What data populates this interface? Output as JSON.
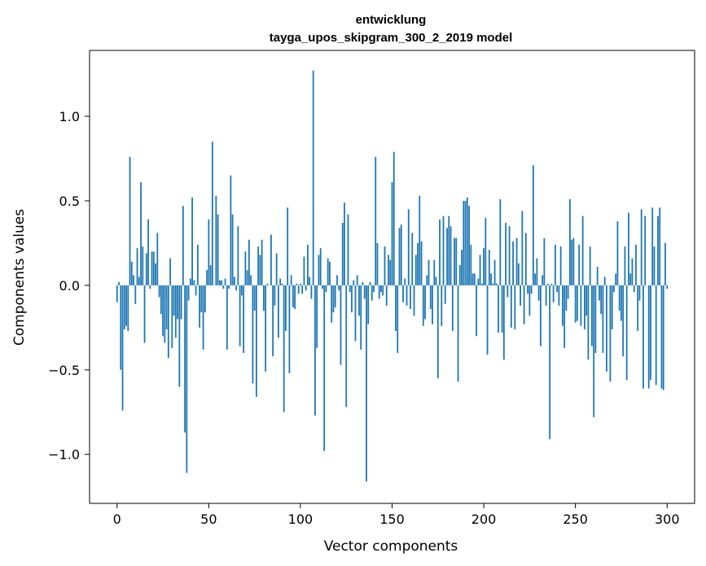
{
  "chart_data": {
    "type": "bar",
    "title": "entwicklung",
    "subtitle": "tayga_upos_skipgram_300_2_2019 model",
    "xlabel": "Vector components",
    "ylabel": "Components values",
    "xlim": [
      -15,
      315
    ],
    "ylim": [
      -1.29,
      1.39
    ],
    "xticks": [
      0,
      50,
      100,
      150,
      200,
      250,
      300
    ],
    "yticks": [
      -1.0,
      -0.5,
      0.0,
      0.5,
      1.0
    ],
    "xtick_labels": [
      "0",
      "50",
      "100",
      "150",
      "200",
      "250",
      "300"
    ],
    "ytick_labels": [
      "−1.0",
      "−0.5",
      "0.0",
      "0.5",
      "1.0"
    ],
    "grid": false,
    "bar_color": "#1f77b4",
    "values": [
      -0.1,
      0.02,
      -0.5,
      -0.74,
      -0.26,
      -0.24,
      -0.27,
      0.76,
      0.14,
      0.06,
      -0.11,
      0.22,
      0.05,
      0.61,
      0.23,
      -0.34,
      0.19,
      0.39,
      -0.02,
      0.2,
      0.2,
      0.13,
      0.31,
      -0.07,
      -0.17,
      -0.3,
      -0.34,
      -0.26,
      -0.43,
      0.16,
      -0.37,
      -0.18,
      -0.31,
      -0.2,
      -0.6,
      -0.2,
      0.47,
      -0.87,
      -1.11,
      -0.09,
      0.04,
      0.52,
      0.03,
      -0.06,
      0.24,
      -0.25,
      -0.16,
      -0.38,
      -0.16,
      0.09,
      0.39,
      0.12,
      0.85,
      0.0,
      0.53,
      0.42,
      0.03,
      0.03,
      -0.02,
      0.04,
      -0.38,
      -0.02,
      0.65,
      0.42,
      0.05,
      -0.03,
      0.35,
      -0.36,
      -0.06,
      -0.4,
      0.2,
      0.09,
      0.27,
      0.06,
      -0.58,
      -0.15,
      -0.66,
      0.23,
      0.18,
      0.27,
      -0.15,
      -0.51,
      0.01,
      0.0,
      0.3,
      -0.42,
      -0.12,
      0.19,
      -0.31,
      0.04,
      0.01,
      -0.75,
      -0.27,
      0.46,
      -0.52,
      0.06,
      -0.13,
      -0.14,
      0.01,
      -0.05,
      0.01,
      -0.05,
      0.17,
      -0.03,
      0.24,
      0.05,
      -0.08,
      1.27,
      -0.77,
      -0.37,
      0.18,
      0.22,
      -0.02,
      -0.98,
      -0.04,
      0.16,
      0.14,
      -0.22,
      -0.16,
      -0.13,
      0.06,
      -0.03,
      -0.47,
      0.37,
      0.49,
      -0.72,
      0.42,
      -0.04,
      -0.16,
      0.03,
      -0.33,
      0.06,
      -0.18,
      -0.38,
      0.02,
      -0.08,
      -1.16,
      -0.23,
      0.02,
      -0.09,
      -0.04,
      0.76,
      0.25,
      -0.08,
      -0.04,
      -0.06,
      0.23,
      -0.12,
      0.18,
      0.15,
      0.61,
      0.79,
      -0.27,
      -0.4,
      0.34,
      0.36,
      -0.1,
      0.04,
      -0.12,
      0.45,
      -0.14,
      0.31,
      -0.18,
      0.18,
      0.25,
      0.53,
      0.26,
      -0.24,
      -0.2,
      0.06,
      0.15,
      -0.14,
      -0.23,
      0.15,
      0.05,
      -0.55,
      0.39,
      -0.24,
      0.41,
      -0.11,
      0.34,
      0.41,
      0.35,
      -0.27,
      0.28,
      0.28,
      -0.57,
      0.12,
      0.21,
      0.5,
      0.5,
      0.52,
      0.47,
      0.24,
      0.07,
      0.07,
      -0.3,
      0.04,
      0.18,
      0.01,
      0.22,
      0.4,
      -0.41,
      0.21,
      0.07,
      0.01,
      0.15,
      0.01,
      -0.28,
      0.51,
      -0.28,
      -0.44,
      0.37,
      -0.07,
      0.35,
      -0.25,
      0.26,
      -0.26,
      0.28,
      0.13,
      -0.12,
      0.44,
      -0.23,
      0.31,
      -0.05,
      -0.18,
      -0.05,
      0.71,
      0.07,
      0.16,
      -0.09,
      -0.36,
      0.06,
      0.28,
      -0.12,
      0.01,
      -0.91,
      0.01,
      -0.1,
      0.24,
      -0.04,
      -0.12,
      0.23,
      -0.24,
      -0.37,
      -0.15,
      -0.08,
      0.51,
      0.27,
      0.28,
      -0.22,
      -0.21,
      0.24,
      -0.24,
      0.41,
      -0.26,
      -0.18,
      -0.44,
      0.23,
      -0.36,
      -0.78,
      -0.4,
      0.11,
      -0.09,
      -0.17,
      -0.4,
      0.05,
      -0.51,
      0.0,
      -0.57,
      -0.26,
      -0.04,
      0.07,
      0.38,
      -0.15,
      -0.21,
      -0.42,
      0.23,
      -0.56,
      0.43,
      0.07,
      0.16,
      -0.04,
      0.24,
      -0.27,
      -0.09,
      0.45,
      -0.61,
      0.41,
      0.0,
      -0.61,
      -0.56,
      0.46,
      0.23,
      -0.59,
      0.41,
      0.46,
      -0.61,
      -0.62,
      0.25,
      -0.02
    ]
  }
}
